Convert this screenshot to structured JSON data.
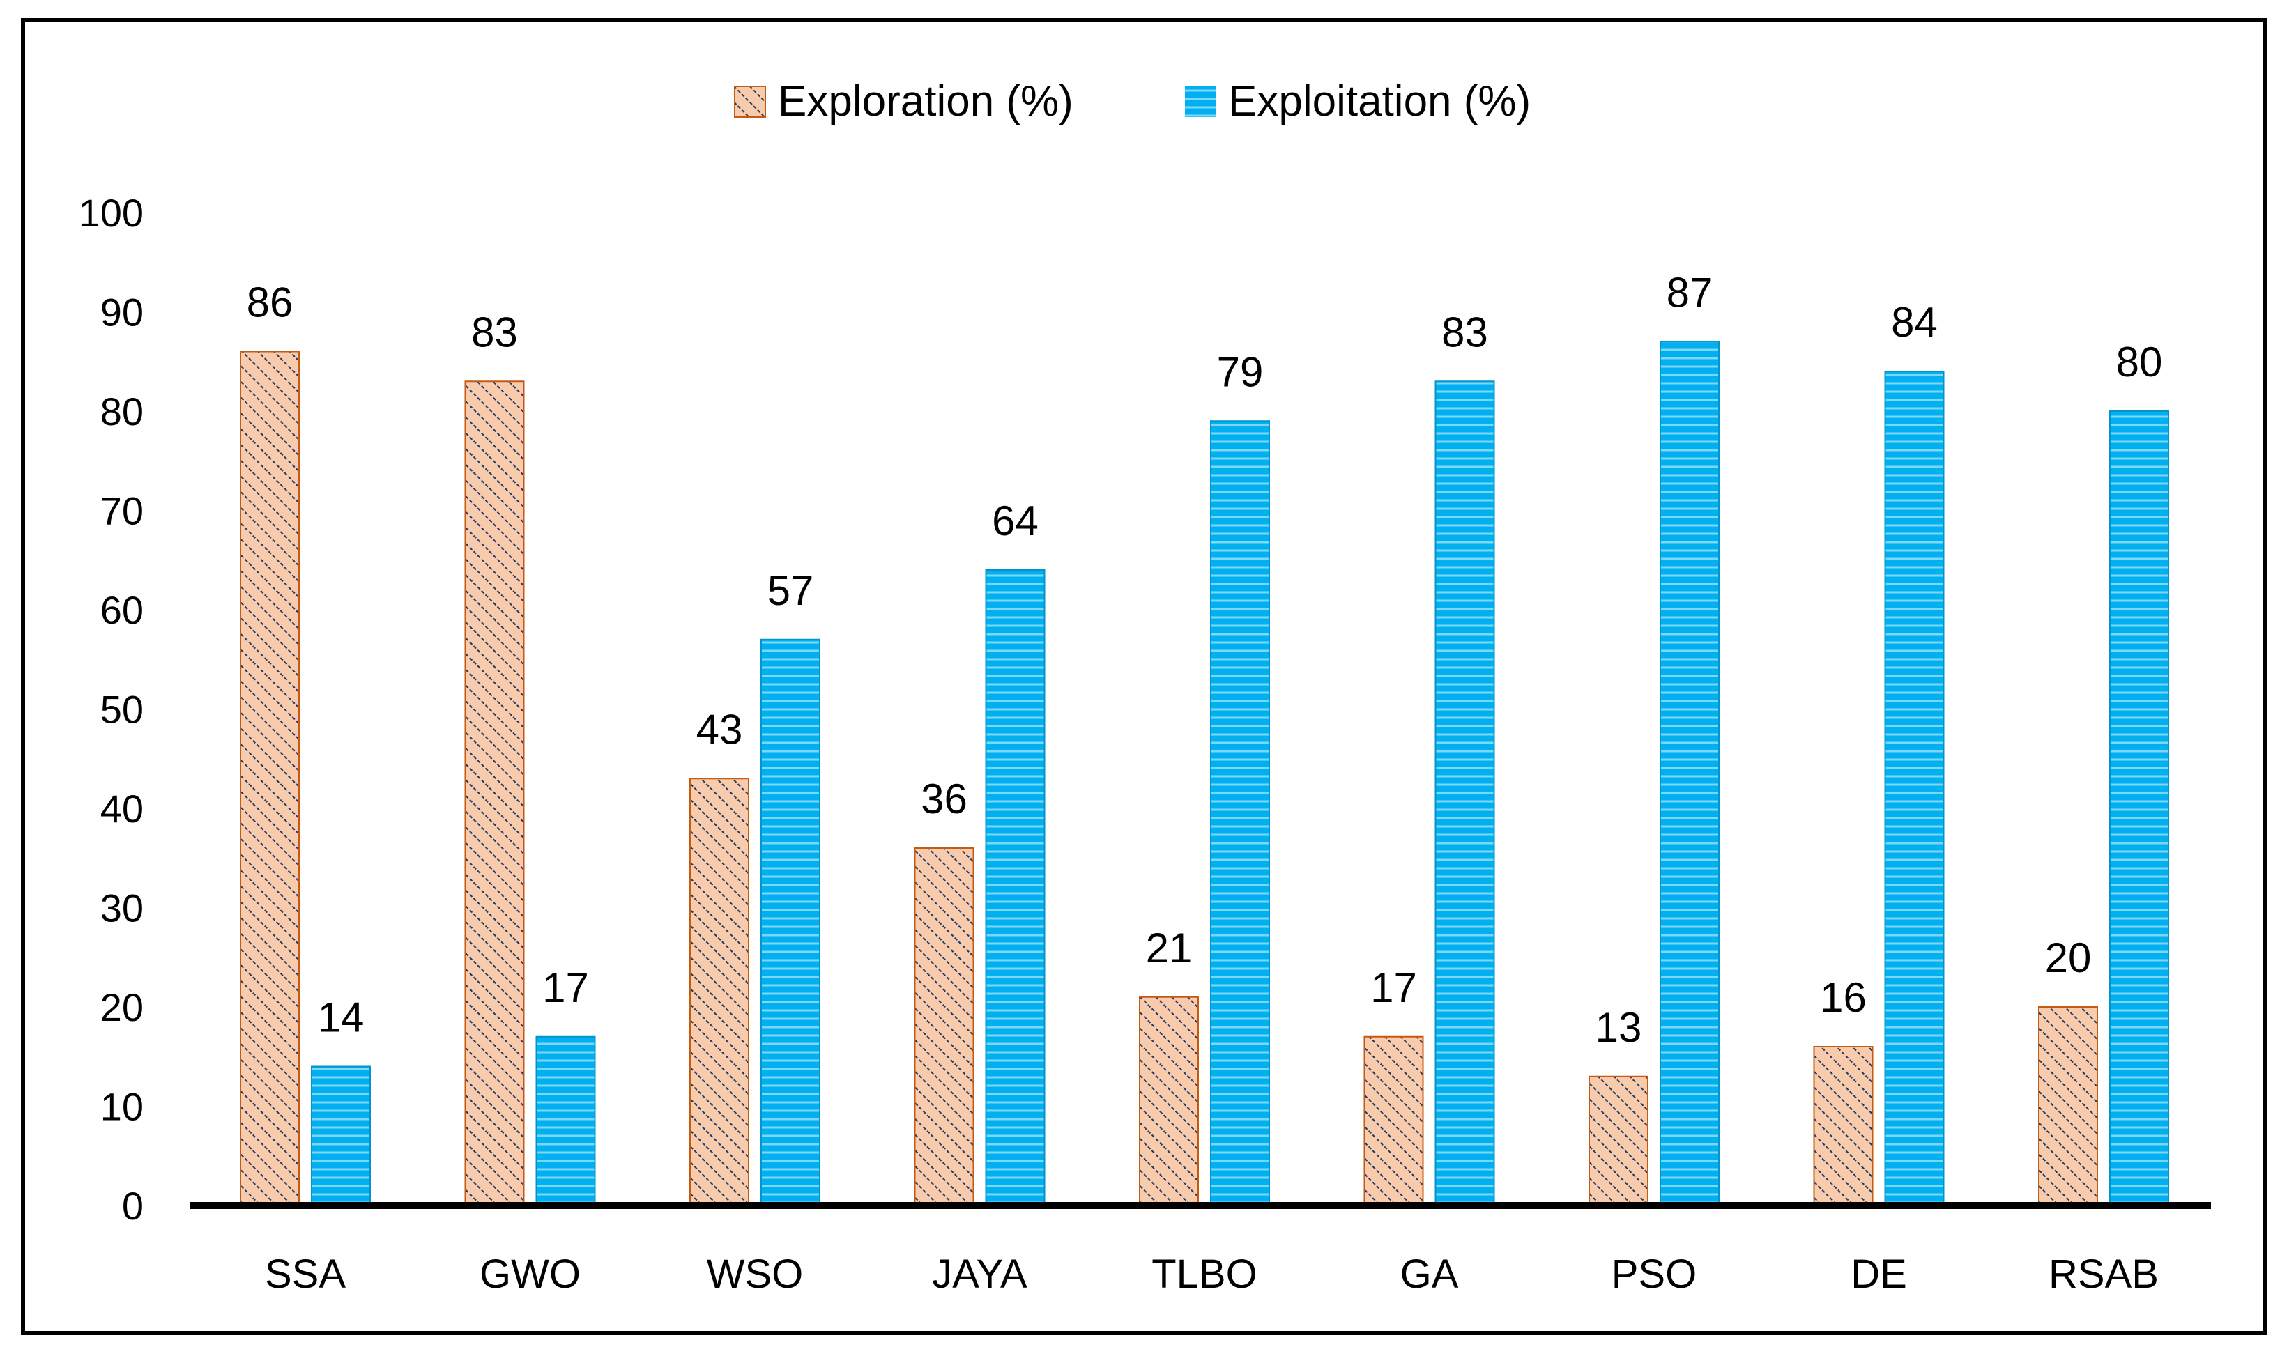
{
  "chart_data": {
    "type": "bar",
    "title": "",
    "xlabel": "",
    "ylabel": "",
    "ylim": [
      0,
      100
    ],
    "yticks": [
      0,
      10,
      20,
      30,
      40,
      50,
      60,
      70,
      80,
      90,
      100
    ],
    "grid": false,
    "legend_position": "top-center",
    "categories": [
      "SSA",
      "GWO",
      "WSO",
      "JAYA",
      "TLBO",
      "GA",
      "PSO",
      "DE",
      "RSAB"
    ],
    "series": [
      {
        "name": "Exploration (%)",
        "values": [
          86,
          83,
          43,
          36,
          21,
          17,
          13,
          16,
          20
        ],
        "labels": [
          "86",
          "83",
          "43",
          "36",
          "21",
          "17",
          "13",
          "16",
          "20"
        ],
        "color": "#F4B183",
        "hatch": "diagonal"
      },
      {
        "name": "Exploitation (%)",
        "values": [
          14,
          17,
          57,
          64,
          79,
          83,
          87,
          84,
          80
        ],
        "labels": [
          "14",
          "17",
          "57",
          "64",
          "79",
          "83",
          "87",
          "84",
          "80"
        ],
        "color": "#00B0F0",
        "hatch": "horizontal"
      }
    ]
  }
}
